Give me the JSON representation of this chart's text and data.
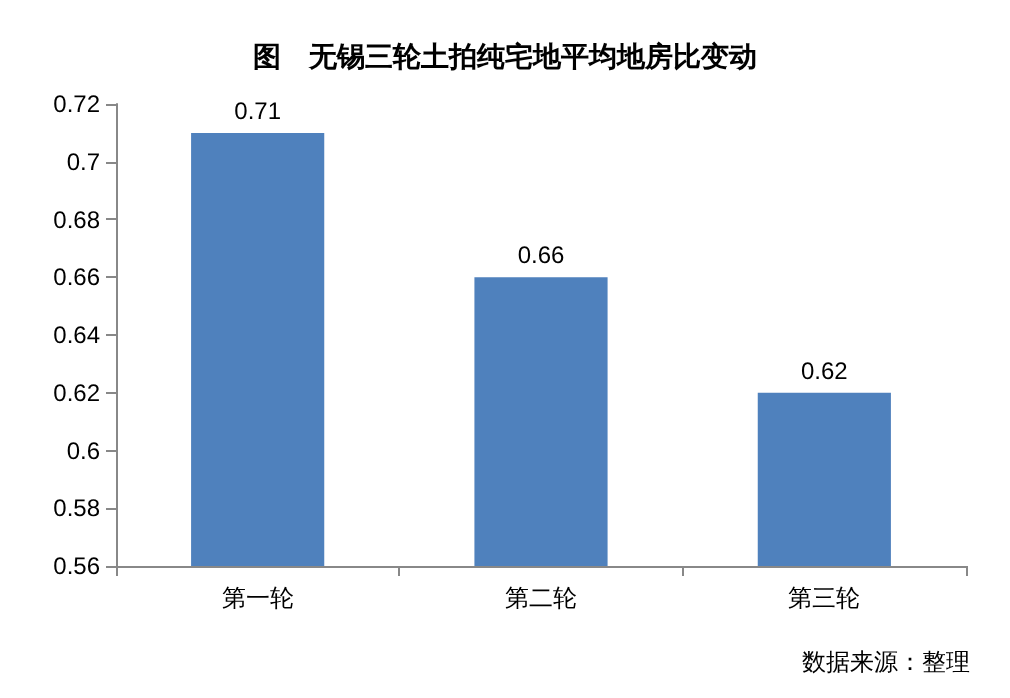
{
  "chart_data": {
    "type": "bar",
    "title": "图　无锡三轮土拍纯宅地平均地房比变动",
    "categories": [
      "第一轮",
      "第二轮",
      "第三轮"
    ],
    "values": [
      0.71,
      0.66,
      0.62
    ],
    "color": "#4f81bd",
    "ylim": [
      0.56,
      0.72
    ],
    "yticks": [
      0.56,
      0.58,
      0.6,
      0.62,
      0.64,
      0.66,
      0.68,
      0.7,
      0.72
    ],
    "grid": false,
    "data_labels": true,
    "annotations": [
      "数据来源：整理"
    ]
  }
}
